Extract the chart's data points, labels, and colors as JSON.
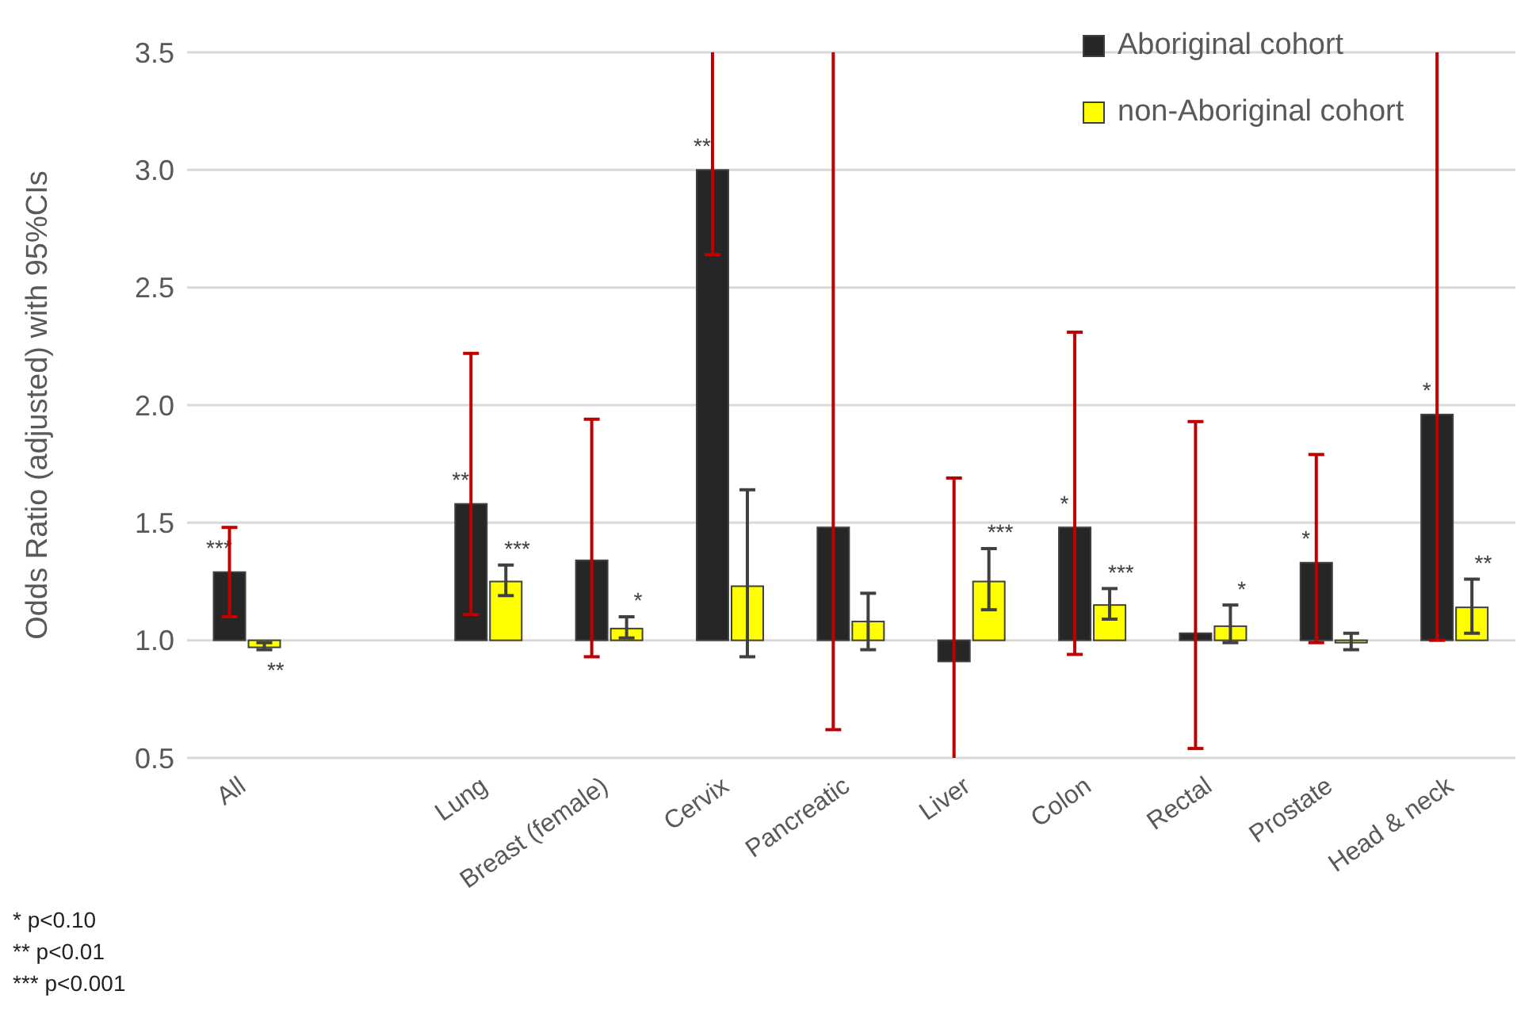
{
  "chart_data": {
    "type": "bar",
    "ylabel": "Odds Ratio (adjusted) with 95%CIs",
    "categories": [
      "All",
      null,
      "Lung",
      "Breast (female)",
      "Cervix",
      "Pancreatic",
      "Liver",
      "Colon",
      "Rectal",
      "Prostate",
      "Head & neck"
    ],
    "series": [
      {
        "name": "Aboriginal cohort",
        "color": "#262626",
        "base": [
          1,
          null,
          1,
          1,
          1,
          1,
          1,
          1,
          1,
          1,
          1
        ],
        "values": [
          0.29,
          null,
          0.58,
          0.34,
          2.0,
          0.48,
          -0.09,
          0.48,
          0.03,
          0.33,
          0.96
        ],
        "errors": [
          [
            1.1,
            1.48
          ],
          null,
          [
            1.11,
            2.22
          ],
          [
            0.93,
            1.94
          ],
          [
            2.64,
            3.5
          ],
          [
            0.62,
            3.5
          ],
          [
            0.5,
            1.69
          ],
          [
            0.94,
            2.31
          ],
          [
            0.54,
            1.93
          ],
          [
            0.99,
            1.79
          ],
          [
            1.0,
            3.5
          ]
        ]
      },
      {
        "name": "non-Aboriginal cohort",
        "color": "#ffff00",
        "base": [
          1,
          null,
          1,
          1,
          1,
          1,
          1,
          1,
          1,
          1,
          1
        ],
        "values": [
          -0.03,
          null,
          0.25,
          0.05,
          0.23,
          0.08,
          0.25,
          0.15,
          0.06,
          -0.01,
          0.14
        ],
        "errors": [
          [
            0.96,
            0.99
          ],
          null,
          [
            1.19,
            1.32
          ],
          [
            1.01,
            1.1
          ],
          [
            0.93,
            1.64
          ],
          [
            0.96,
            1.2
          ],
          [
            1.13,
            1.39
          ],
          [
            1.09,
            1.22
          ],
          [
            0.99,
            1.15
          ],
          [
            0.96,
            1.03
          ],
          [
            1.03,
            1.26
          ]
        ]
      }
    ],
    "ylim": [
      0.5,
      3.5
    ],
    "yticks": [
      0.5,
      {
        "value": 1,
        "label": "1.0"
      },
      1.5,
      {
        "value": 2,
        "label": "2.0"
      },
      2.5,
      {
        "value": 3,
        "label": "3.0"
      },
      3.5
    ],
    "grid": "y",
    "legend": "top right",
    "annotations": [
      {
        "text": "***",
        "x": "All",
        "y": 1.29
      },
      {
        "text": "**",
        "x": "All",
        "y": 0.97
      },
      {
        "text": "**",
        "x": "Lung",
        "y": 1.58
      },
      {
        "text": "***",
        "x": "Lung",
        "y": 1.25
      },
      {
        "text": "*",
        "x": "Breast (female)",
        "y": 1.05
      },
      {
        "text": "**",
        "x": "Cervix",
        "y": 3.0
      },
      {
        "text": "***",
        "x": "Liver",
        "y": 1.25
      },
      {
        "text": "*",
        "x": "Colon",
        "y": 1.48
      },
      {
        "text": "***",
        "x": "Colon",
        "y": 1.15
      },
      {
        "text": "*",
        "x": "Rectal",
        "y": 1.06
      },
      {
        "text": "*",
        "x": "Prostate",
        "y": 1.33
      },
      {
        "text": "*",
        "x": "Head & neck",
        "y": 1.96
      },
      {
        "text": "**",
        "x": "Head & neck",
        "y": 1.14
      },
      "* p<0.10",
      "** p<0.01",
      "*** p<0.001"
    ]
  }
}
